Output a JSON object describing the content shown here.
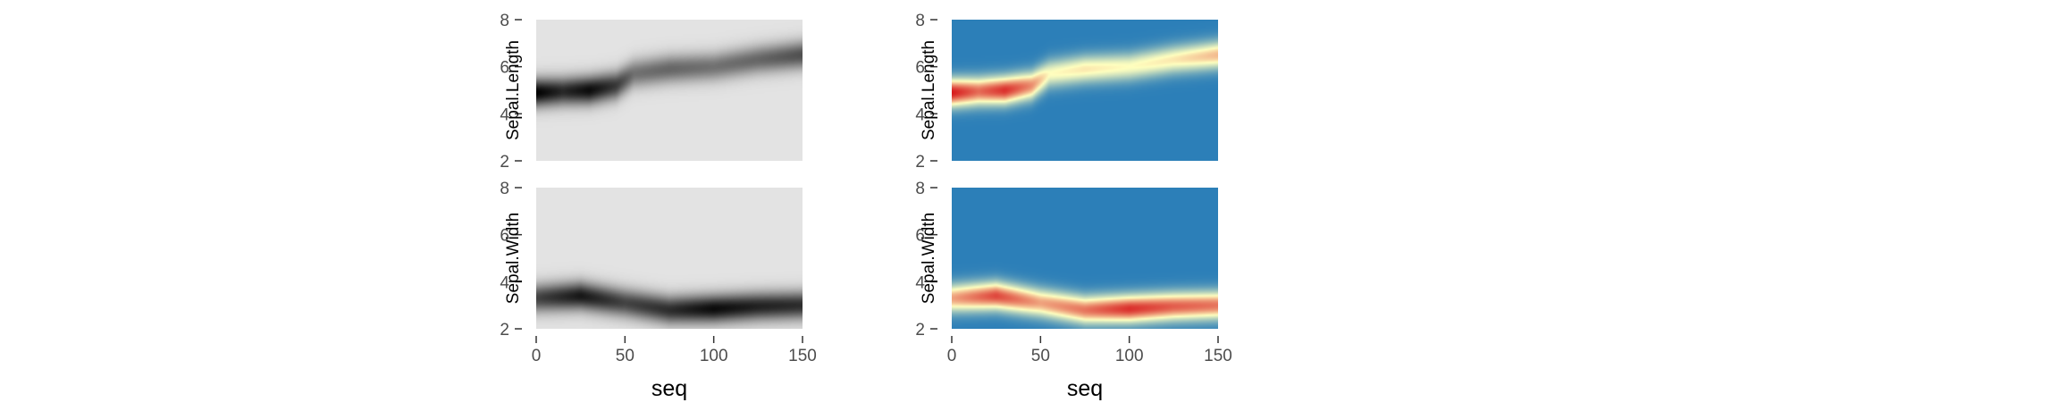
{
  "chart_data": {
    "type": "heatmap",
    "x_axis": {
      "title": "seq",
      "range": [
        0,
        150
      ],
      "ticks": [
        0,
        50,
        100,
        150
      ]
    },
    "y_axis": {
      "range": [
        2,
        8
      ],
      "ticks": [
        2,
        4,
        6,
        8
      ]
    },
    "columns": [
      {
        "name": "grey",
        "colors": [
          "#e3e3e3",
          "#000000"
        ]
      },
      {
        "name": "blue-red",
        "colors": [
          "#2c7fb8",
          "#ffffbf",
          "#d7191c"
        ]
      }
    ],
    "rows": [
      {
        "ylabel": "Sepal.Length",
        "profile": [
          {
            "x": 0,
            "y": 4.9,
            "w": 1.0
          },
          {
            "x": 15,
            "y": 4.95,
            "w": 0.82
          },
          {
            "x": 30,
            "y": 5.0,
            "w": 0.95
          },
          {
            "x": 45,
            "y": 5.2,
            "w": 0.75
          },
          {
            "x": 55,
            "y": 5.7,
            "w": 0.5
          },
          {
            "x": 75,
            "y": 5.9,
            "w": 0.55
          },
          {
            "x": 100,
            "y": 6.0,
            "w": 0.5
          },
          {
            "x": 125,
            "y": 6.3,
            "w": 0.55
          },
          {
            "x": 150,
            "y": 6.5,
            "w": 0.65
          }
        ]
      },
      {
        "ylabel": "Sepal.Width",
        "profile": [
          {
            "x": 0,
            "y": 3.3,
            "w": 0.7
          },
          {
            "x": 25,
            "y": 3.4,
            "w": 0.9
          },
          {
            "x": 50,
            "y": 3.1,
            "w": 0.7
          },
          {
            "x": 75,
            "y": 2.8,
            "w": 0.8
          },
          {
            "x": 100,
            "y": 2.85,
            "w": 0.95
          },
          {
            "x": 125,
            "y": 2.95,
            "w": 0.85
          },
          {
            "x": 150,
            "y": 3.0,
            "w": 0.8
          }
        ]
      }
    ]
  }
}
